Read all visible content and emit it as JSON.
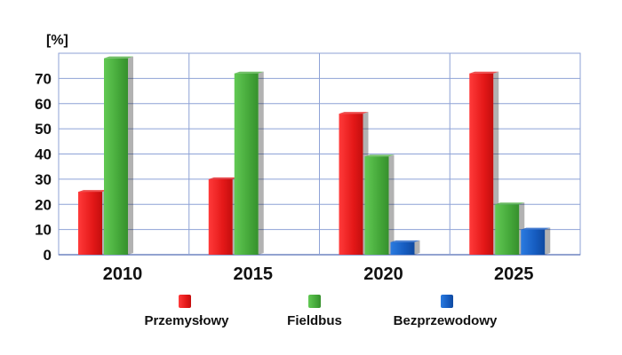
{
  "chart_data": {
    "type": "bar",
    "ylabel": "[%]",
    "categories": [
      "2010",
      "2015",
      "2020",
      "2025"
    ],
    "yticks": [
      0,
      10,
      20,
      30,
      40,
      50,
      60,
      70
    ],
    "ylim": [
      0,
      80
    ],
    "grid": true,
    "legend_position": "bottom",
    "series": [
      {
        "name": "Przemysłowy",
        "color": "#e82020",
        "values": [
          25,
          30,
          56,
          72
        ]
      },
      {
        "name": "Fieldbus",
        "color": "#4cae40",
        "values": [
          78,
          72,
          39,
          20
        ]
      },
      {
        "name": "Bezprzewodowy",
        "color": "#1a5ec4",
        "values": [
          null,
          null,
          5,
          10
        ]
      }
    ]
  }
}
